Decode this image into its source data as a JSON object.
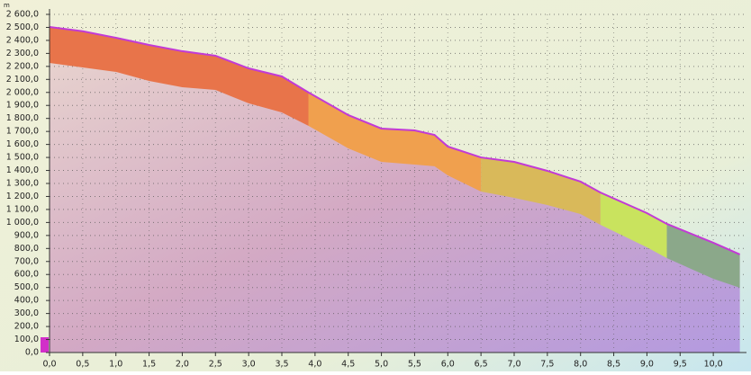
{
  "chart_data": {
    "type": "area",
    "y_unit": "m",
    "x": [
      0,
      0.5,
      1.0,
      1.5,
      2.0,
      2.5,
      3.0,
      3.5,
      3.9,
      4.5,
      5.0,
      5.5,
      5.8,
      6.0,
      6.5,
      7.0,
      7.5,
      8.0,
      8.3,
      9.0,
      9.3,
      10.0,
      10.4
    ],
    "series": [
      {
        "color": "#c23ad6",
        "values": [
          2503,
          2470,
          2420,
          2365,
          2317,
          2282,
          2185,
          2123,
          2000,
          1826,
          1722,
          1708,
          1673,
          1584,
          1500,
          1466,
          1397,
          1314,
          1230,
          1072,
          989,
          844,
          754
        ]
      },
      {
        "values": [
          2227,
          2192,
          2158,
          2088,
          2040,
          2019,
          1916,
          1846,
          1743,
          1570,
          1466,
          1445,
          1432,
          1362,
          1238,
          1189,
          1134,
          1065,
          982,
          809,
          726,
          567,
          498
        ]
      }
    ],
    "segments": [
      {
        "from": 0,
        "to": 3.9,
        "color": "#e8744a"
      },
      {
        "from": 3.9,
        "to": 6.5,
        "color": "#f0a04e"
      },
      {
        "from": 6.5,
        "to": 8.3,
        "color": "#d9b95a"
      },
      {
        "from": 8.3,
        "to": 9.3,
        "color": "#c9e35e"
      },
      {
        "from": 9.3,
        "to": 10.4,
        "color": "#8ba88a"
      }
    ],
    "xlim": [
      0,
      10.5
    ],
    "ylim": [
      0,
      2600
    ],
    "xticks": [
      {
        "value": 0,
        "label": "0,0"
      },
      {
        "value": 0.5,
        "label": "0,5"
      },
      {
        "value": 1,
        "label": "1,0"
      },
      {
        "value": 1.5,
        "label": "1,5"
      },
      {
        "value": 2,
        "label": "2,0"
      },
      {
        "value": 2.5,
        "label": "2,5"
      },
      {
        "value": 3,
        "label": "3,0"
      },
      {
        "value": 3.5,
        "label": "3,5"
      },
      {
        "value": 4,
        "label": "4,0"
      },
      {
        "value": 4.5,
        "label": "4,5"
      },
      {
        "value": 5,
        "label": "5,0"
      },
      {
        "value": 5.5,
        "label": "5,5"
      },
      {
        "value": 6,
        "label": "6,0"
      },
      {
        "value": 6.5,
        "label": "6,5"
      },
      {
        "value": 7,
        "label": "7,0"
      },
      {
        "value": 7.5,
        "label": "7,5"
      },
      {
        "value": 8,
        "label": "8,0"
      },
      {
        "value": 8.5,
        "label": "8,5"
      },
      {
        "value": 9,
        "label": "9,0"
      },
      {
        "value": 9.5,
        "label": "9,5"
      },
      {
        "value": 10,
        "label": "10,0"
      }
    ],
    "yticks": [
      {
        "value": 0,
        "label": "0,0"
      },
      {
        "value": 100,
        "label": "100,0"
      },
      {
        "value": 200,
        "label": "200,0"
      },
      {
        "value": 300,
        "label": "300,0"
      },
      {
        "value": 400,
        "label": "400,0"
      },
      {
        "value": 500,
        "label": "500,0"
      },
      {
        "value": 600,
        "label": "600,0"
      },
      {
        "value": 700,
        "label": "700,0"
      },
      {
        "value": 800,
        "label": "800,0"
      },
      {
        "value": 900,
        "label": "900,0"
      },
      {
        "value": 1000,
        "label": "1 000,0"
      },
      {
        "value": 1100,
        "label": "1 100,0"
      },
      {
        "value": 1200,
        "label": "1 200,0"
      },
      {
        "value": 1300,
        "label": "1 300,0"
      },
      {
        "value": 1400,
        "label": "1 400,0"
      },
      {
        "value": 1500,
        "label": "1 500,0"
      },
      {
        "value": 1600,
        "label": "1 600,0"
      },
      {
        "value": 1700,
        "label": "1 700,0"
      },
      {
        "value": 1800,
        "label": "1 800,0"
      },
      {
        "value": 1900,
        "label": "1 900,0"
      },
      {
        "value": 2000,
        "label": "2 000,0"
      },
      {
        "value": 2100,
        "label": "2 100,0"
      },
      {
        "value": 2200,
        "label": "2 200,0"
      },
      {
        "value": 2300,
        "label": "2 300,0"
      },
      {
        "value": 2400,
        "label": "2 400,0"
      },
      {
        "value": 2500,
        "label": "2 500,0"
      },
      {
        "value": 2600,
        "label": "2 600,0"
      }
    ],
    "grid": true
  }
}
